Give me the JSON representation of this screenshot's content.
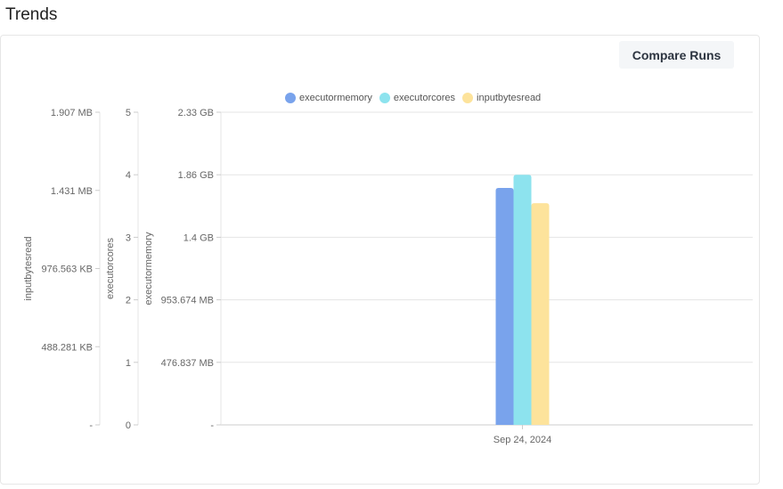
{
  "header": {
    "title": "Trends"
  },
  "toolbar": {
    "compare_label": "Compare Runs"
  },
  "colors": {
    "executormemory": "#79a3ec",
    "executorcores": "#8de3ee",
    "inputbytesread": "#fde39b",
    "grid": "#e5e5e5",
    "axis": "#cccccc",
    "tick_text": "#666666"
  },
  "chart_data": {
    "type": "bar",
    "categories": [
      "Sep 24, 2024"
    ],
    "legend_position": "top-center",
    "grid": true,
    "series": [
      {
        "name": "executormemory",
        "values": [
          1.766
        ],
        "unit": "GB"
      },
      {
        "name": "executorcores",
        "values": [
          4
        ],
        "unit": ""
      },
      {
        "name": "inputbytesread",
        "values": [
          1.352
        ],
        "unit": "MB"
      }
    ],
    "axes": [
      {
        "id": "executormemory",
        "label": "executormemory",
        "ylim": [
          0,
          2.33
        ],
        "tick_labels": [
          "-",
          "476.837 MB",
          "953.674 MB",
          "1.4 GB",
          "1.86 GB",
          "2.33 GB"
        ]
      },
      {
        "id": "executorcores",
        "label": "executorcores",
        "ylim": [
          0,
          5
        ],
        "tick_labels": [
          "0",
          "1",
          "2",
          "3",
          "4",
          "5"
        ]
      },
      {
        "id": "inputbytesread",
        "label": "inputbytesread",
        "ylim": [
          0,
          1.907
        ],
        "tick_labels": [
          "-",
          "488.281 KB",
          "976.563 KB",
          "1.431 MB",
          "1.907 MB"
        ]
      }
    ]
  }
}
